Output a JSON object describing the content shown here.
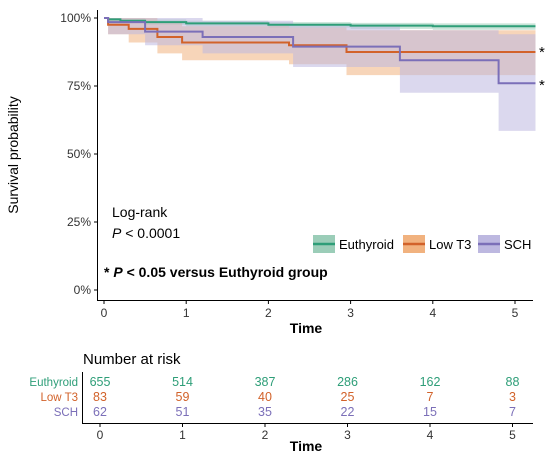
{
  "chart_data": [
    {
      "type": "line",
      "subtype": "kaplan-meier",
      "xlabel": "Time",
      "ylabel": "Survival probability",
      "xlim": [
        0,
        5.25
      ],
      "ylim": [
        0,
        1
      ],
      "x_ticks": [
        0,
        1,
        2,
        3,
        4,
        5
      ],
      "y_ticks": [
        {
          "value": 0,
          "label": "0%"
        },
        {
          "value": 0.25,
          "label": "25%"
        },
        {
          "value": 0.5,
          "label": "50%"
        },
        {
          "value": 0.75,
          "label": "75%"
        },
        {
          "value": 1,
          "label": "100%"
        }
      ],
      "grid": false,
      "legend_placement": "lower-right",
      "annotations": {
        "logrank_line1": "Log-rank",
        "logrank_p_italic": "P",
        "logrank_p_rest": " < 0.0001",
        "footnote_star": "* ",
        "footnote_p_italic": "P",
        "footnote_rest": " < 0.05 versus Euthyroid group",
        "low_t3_star": "*",
        "sch_star": "*"
      },
      "series": [
        {
          "name": "Euthyroid",
          "color": "#2e9e78",
          "ci_color": "#9bcdb8",
          "x": [
            0,
            0.05,
            0.2,
            0.5,
            1.0,
            2.0,
            3.0,
            4.0,
            5.25
          ],
          "y": [
            1.0,
            0.995,
            0.99,
            0.985,
            0.98,
            0.975,
            0.972,
            0.97,
            0.97
          ],
          "ci_lower": [
            1.0,
            0.99,
            0.982,
            0.975,
            0.97,
            0.965,
            0.96,
            0.957,
            0.955
          ],
          "ci_upper": [
            1.0,
            1.0,
            0.998,
            0.995,
            0.99,
            0.985,
            0.982,
            0.98,
            0.98
          ]
        },
        {
          "name": "Low T3",
          "color": "#d2622a",
          "ci_color": "#f1b27f",
          "x": [
            0,
            0.05,
            0.3,
            0.65,
            0.95,
            2.25,
            2.95,
            3.6,
            5.25
          ],
          "y": [
            1.0,
            0.975,
            0.96,
            0.93,
            0.91,
            0.9,
            0.875,
            0.875,
            0.875
          ],
          "ci_lower": [
            1.0,
            0.94,
            0.91,
            0.87,
            0.845,
            0.83,
            0.79,
            0.79,
            0.79
          ],
          "ci_upper": [
            1.0,
            1.0,
            1.0,
            0.985,
            0.97,
            0.965,
            0.955,
            0.955,
            0.955
          ]
        },
        {
          "name": "SCH",
          "color": "#7b6fb8",
          "ci_color": "#bdb8e0",
          "x": [
            0,
            0.05,
            0.5,
            1.2,
            2.3,
            3.6,
            4.8,
            5.25
          ],
          "y": [
            1.0,
            0.985,
            0.95,
            0.93,
            0.895,
            0.845,
            0.76,
            0.76
          ],
          "ci_lower": [
            1.0,
            0.94,
            0.9,
            0.87,
            0.82,
            0.725,
            0.585,
            0.585
          ],
          "ci_upper": [
            1.0,
            1.0,
            1.0,
            0.99,
            0.975,
            0.955,
            0.94,
            0.94
          ]
        }
      ]
    },
    {
      "type": "table",
      "title": "Number at risk",
      "xlabel": "Time",
      "x_ticks": [
        0,
        1,
        2,
        3,
        4,
        5
      ],
      "rows": [
        {
          "group": "Euthyroid",
          "color": "#2e9e78",
          "values": [
            655,
            514,
            387,
            286,
            162,
            88
          ]
        },
        {
          "group": "Low T3",
          "color": "#d2622a",
          "values": [
            83,
            59,
            40,
            25,
            7,
            3
          ]
        },
        {
          "group": "SCH",
          "color": "#7b6fb8",
          "values": [
            62,
            51,
            35,
            22,
            15,
            7
          ]
        }
      ]
    }
  ]
}
